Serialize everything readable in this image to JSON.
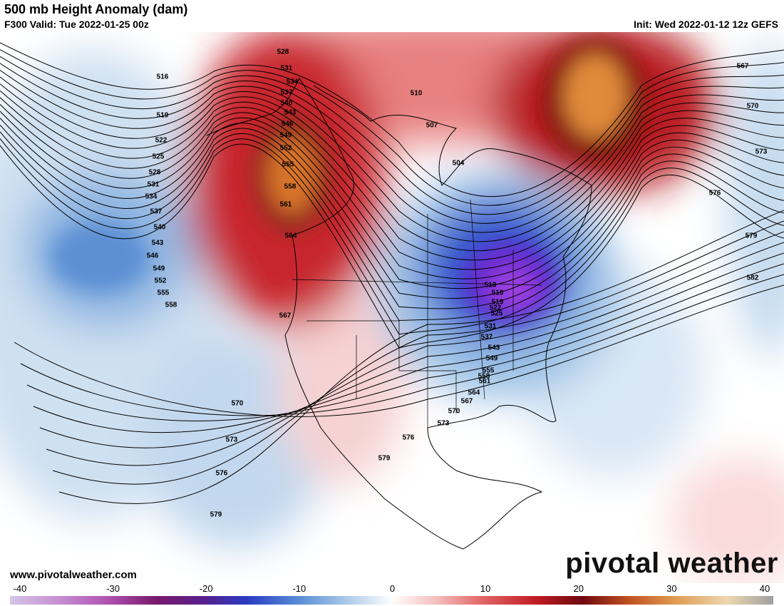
{
  "header": {
    "title": "500 mb Height Anomaly (dam)",
    "valid": "F300 Valid: Tue 2022-01-25 00z",
    "init": "Init: Wed 2022-01-12 12z GEFS"
  },
  "contour_labels": [
    "516",
    "519",
    "522",
    "525",
    "528",
    "531",
    "534",
    "537",
    "540",
    "543",
    "546",
    "549",
    "552",
    "555",
    "558",
    "528",
    "531",
    "534",
    "537",
    "540",
    "543",
    "546",
    "549",
    "552",
    "555",
    "558",
    "561",
    "564",
    "567",
    "570",
    "573",
    "576",
    "579",
    "579",
    "576",
    "573",
    "570",
    "567",
    "564",
    "561",
    "558",
    "555",
    "549",
    "543",
    "537",
    "531",
    "525",
    "522",
    "519",
    "516",
    "513",
    "510",
    "507",
    "504",
    "567",
    "570",
    "573",
    "576",
    "579",
    "582"
  ],
  "colorbar": {
    "ticks": [
      -40,
      -30,
      -20,
      -10,
      0,
      10,
      20,
      30,
      40
    ]
  },
  "footer": {
    "site": "www.pivotalweather.com",
    "logo": "pivotal weather"
  }
}
